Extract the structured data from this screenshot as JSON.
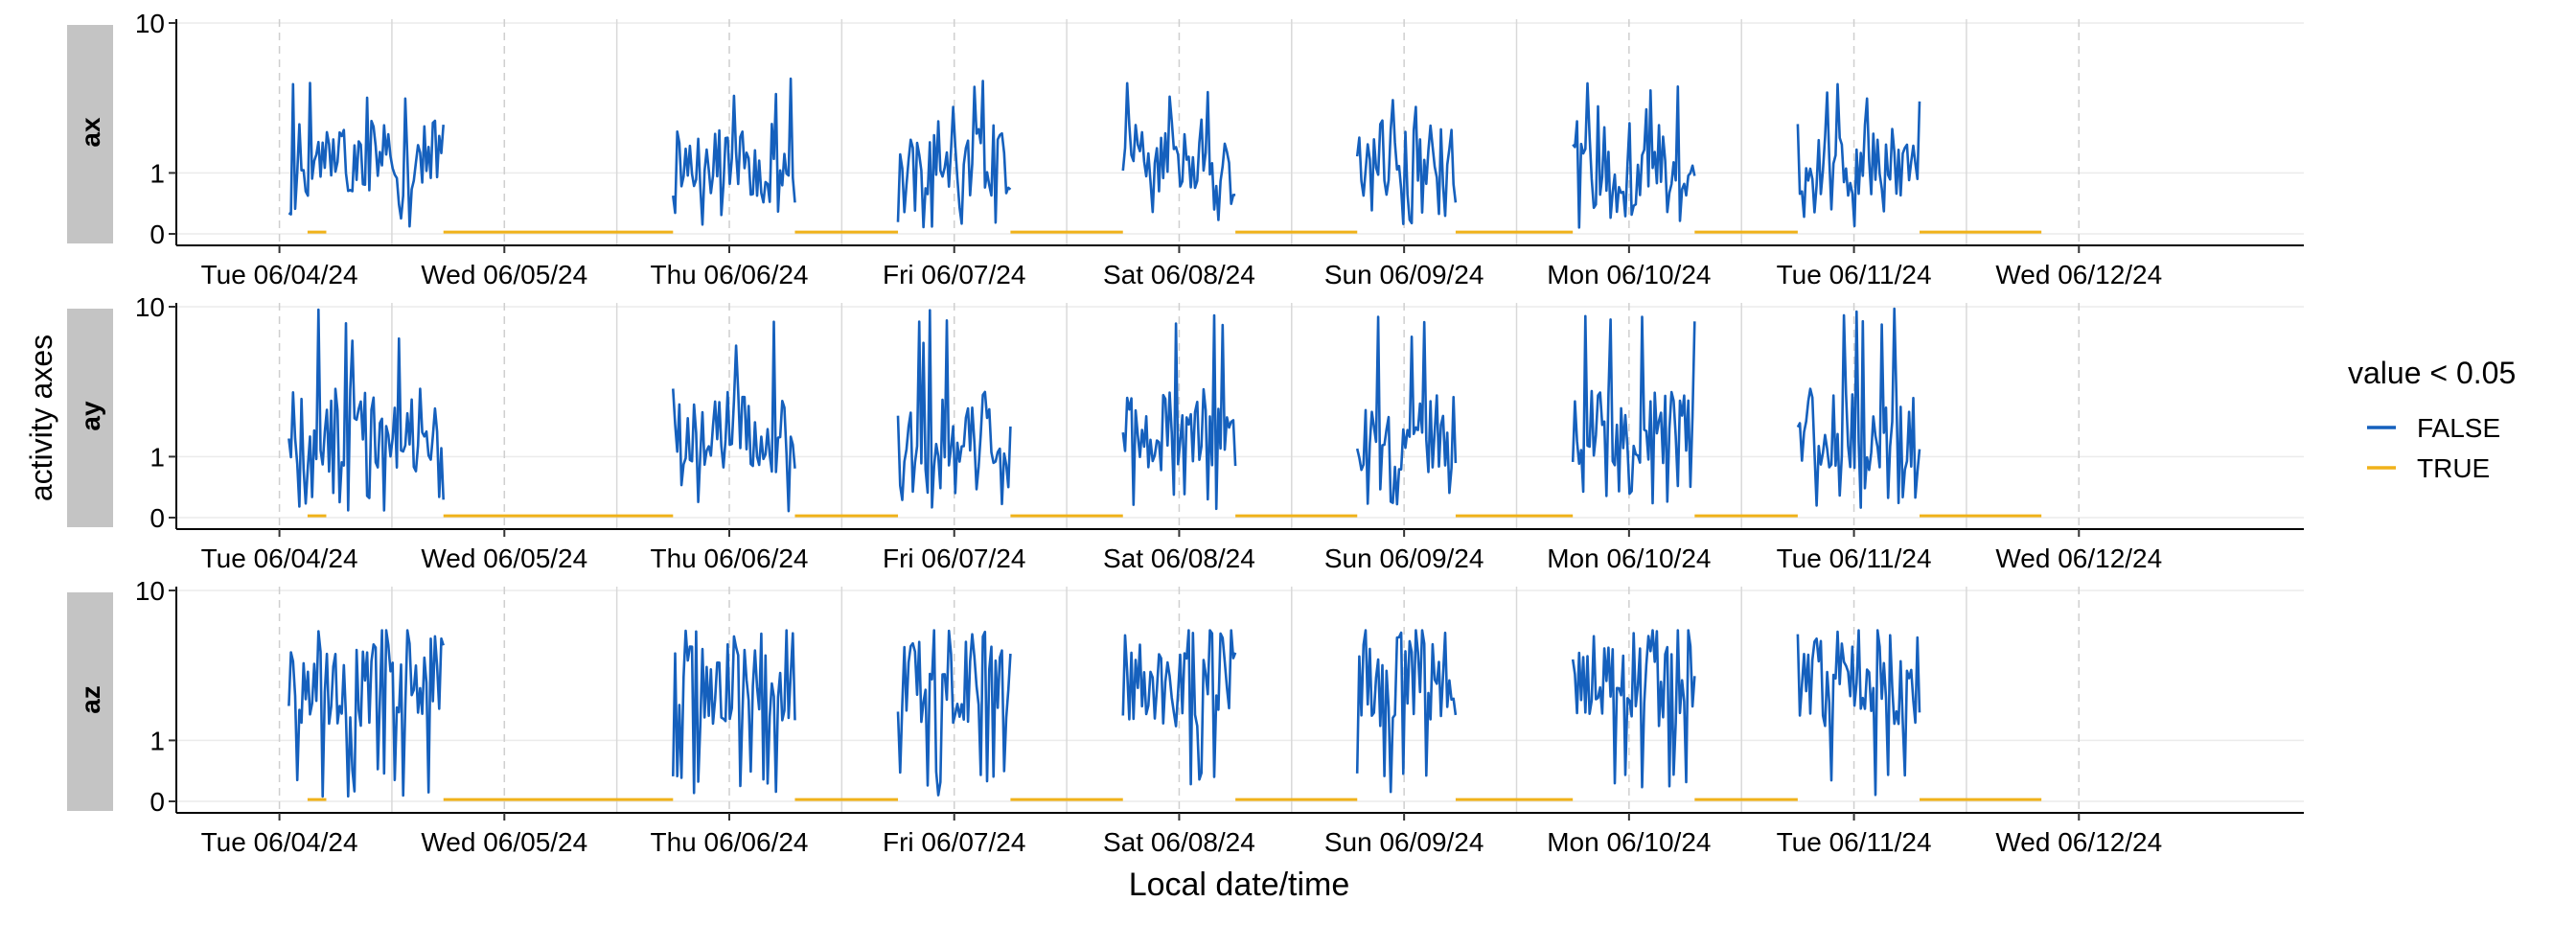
{
  "chart_data": {
    "type": "line",
    "xlabel": "Local date/time",
    "ylabel": "activity axes",
    "x_tick_labels": [
      "Tue 06/04/24",
      "Wed 06/05/24",
      "Thu 06/06/24",
      "Fri 06/07/24",
      "Sat 06/08/24",
      "Sun 06/09/24",
      "Mon 06/10/24",
      "Tue 06/11/24",
      "Wed 06/12/24"
    ],
    "x_tick_dates": [
      "2024-06-04T12:00",
      "2024-06-05T12:00",
      "2024-06-06T12:00",
      "2024-06-07T12:00",
      "2024-06-08T12:00",
      "2024-06-09T12:00",
      "2024-06-10T12:00",
      "2024-06-11T12:00",
      "2024-06-12T12:00"
    ],
    "xlim": [
      "2024-06-04T01:00",
      "2024-06-13T12:00"
    ],
    "y_scale": "log1p",
    "y_tick_values": [
      0,
      1,
      10
    ],
    "y_tick_labels": [
      "0",
      "1",
      "10"
    ],
    "ylim": [
      0,
      10
    ],
    "grid": true,
    "legend": {
      "title": "value < 0.05",
      "position": "right",
      "entries": [
        {
          "label": "FALSE",
          "color": "#1560BD"
        },
        {
          "label": "TRUE",
          "color": "#F0B21A"
        }
      ]
    },
    "panels": [
      {
        "name": "ax",
        "series": [
          {
            "name": "FALSE",
            "segments": [
              [
                "2024-06-04T13:00",
                "2024-06-05T05:30"
              ],
              [
                "2024-06-06T06:00",
                "2024-06-06T19:00"
              ],
              [
                "2024-06-07T06:00",
                "2024-06-07T18:00"
              ],
              [
                "2024-06-08T06:00",
                "2024-06-08T18:00"
              ],
              [
                "2024-06-09T07:00",
                "2024-06-09T17:30"
              ],
              [
                "2024-06-10T06:00",
                "2024-06-10T19:00"
              ],
              [
                "2024-06-11T06:00",
                "2024-06-11T19:00"
              ]
            ],
            "base": 1.2,
            "min": 0.05,
            "max": 5
          },
          {
            "name": "TRUE",
            "segments": [
              [
                "2024-06-04T15:00",
                "2024-06-04T17:00"
              ],
              [
                "2024-06-05T05:30",
                "2024-06-06T06:00"
              ],
              [
                "2024-06-06T19:00",
                "2024-06-07T06:00"
              ],
              [
                "2024-06-07T18:00",
                "2024-06-08T06:00"
              ],
              [
                "2024-06-08T18:00",
                "2024-06-09T07:00"
              ],
              [
                "2024-06-09T17:30",
                "2024-06-10T06:00"
              ],
              [
                "2024-06-10T19:00",
                "2024-06-11T06:00"
              ],
              [
                "2024-06-11T19:00",
                "2024-06-12T08:00"
              ]
            ],
            "value": 0.02
          }
        ]
      },
      {
        "name": "ay",
        "series": [
          {
            "name": "FALSE",
            "segments": [
              [
                "2024-06-04T13:00",
                "2024-06-05T05:30"
              ],
              [
                "2024-06-06T06:00",
                "2024-06-06T19:00"
              ],
              [
                "2024-06-07T06:00",
                "2024-06-07T18:00"
              ],
              [
                "2024-06-08T06:00",
                "2024-06-08T18:00"
              ],
              [
                "2024-06-09T07:00",
                "2024-06-09T17:30"
              ],
              [
                "2024-06-10T06:00",
                "2024-06-10T19:00"
              ],
              [
                "2024-06-11T06:00",
                "2024-06-11T19:00"
              ]
            ],
            "base": 1.5,
            "min": 0.05,
            "max": 10
          },
          {
            "name": "TRUE",
            "segments": [
              [
                "2024-06-04T15:00",
                "2024-06-04T17:00"
              ],
              [
                "2024-06-05T05:30",
                "2024-06-06T06:00"
              ],
              [
                "2024-06-06T19:00",
                "2024-06-07T06:00"
              ],
              [
                "2024-06-07T18:00",
                "2024-06-08T06:00"
              ],
              [
                "2024-06-08T18:00",
                "2024-06-09T07:00"
              ],
              [
                "2024-06-09T17:30",
                "2024-06-10T06:00"
              ],
              [
                "2024-06-10T19:00",
                "2024-06-11T06:00"
              ],
              [
                "2024-06-11T19:00",
                "2024-06-12T08:00"
              ]
            ],
            "value": 0.02
          }
        ]
      },
      {
        "name": "az",
        "series": [
          {
            "name": "FALSE",
            "segments": [
              [
                "2024-06-04T13:00",
                "2024-06-05T05:30"
              ],
              [
                "2024-06-06T06:00",
                "2024-06-06T19:00"
              ],
              [
                "2024-06-07T06:00",
                "2024-06-07T18:00"
              ],
              [
                "2024-06-08T06:00",
                "2024-06-08T18:00"
              ],
              [
                "2024-06-09T07:00",
                "2024-06-09T17:30"
              ],
              [
                "2024-06-10T06:00",
                "2024-06-10T19:00"
              ],
              [
                "2024-06-11T06:00",
                "2024-06-11T19:00"
              ]
            ],
            "base": 3,
            "min": 0.05,
            "max": 6
          },
          {
            "name": "TRUE",
            "segments": [
              [
                "2024-06-04T15:00",
                "2024-06-04T17:00"
              ],
              [
                "2024-06-05T05:30",
                "2024-06-06T06:00"
              ],
              [
                "2024-06-06T19:00",
                "2024-06-07T06:00"
              ],
              [
                "2024-06-07T18:00",
                "2024-06-08T06:00"
              ],
              [
                "2024-06-08T18:00",
                "2024-06-09T07:00"
              ],
              [
                "2024-06-09T17:30",
                "2024-06-10T06:00"
              ],
              [
                "2024-06-10T19:00",
                "2024-06-11T06:00"
              ],
              [
                "2024-06-11T19:00",
                "2024-06-12T08:00"
              ]
            ],
            "value": 0.02
          }
        ]
      }
    ]
  }
}
